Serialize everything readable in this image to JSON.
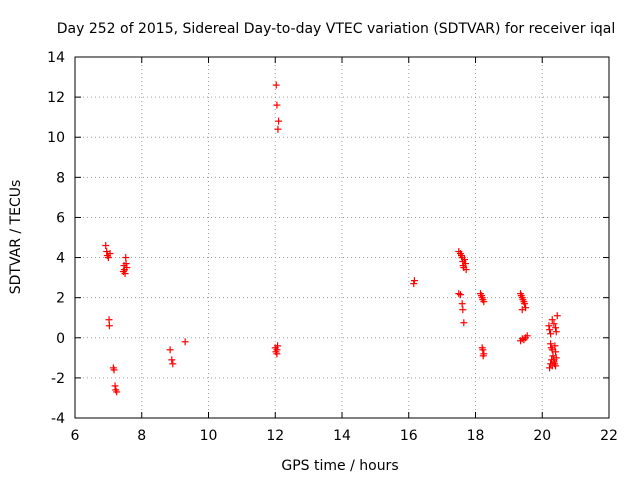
{
  "chart_data": {
    "type": "scatter",
    "title": "Day 252 of 2015, Sidereal Day-to-day VTEC variation (SDTVAR) for receiver iqal",
    "xlabel": "GPS time / hours",
    "ylabel": "SDTVAR / TECUs",
    "xlim": [
      6,
      22
    ],
    "ylim": [
      -4,
      14
    ],
    "xticks": [
      6,
      8,
      10,
      12,
      14,
      16,
      18,
      20,
      22
    ],
    "yticks": [
      -4,
      -2,
      0,
      2,
      4,
      6,
      8,
      10,
      12,
      14
    ],
    "xtick_labels": [
      "6",
      "8",
      "10",
      "12",
      "14",
      "16",
      "18",
      "20",
      "22"
    ],
    "ytick_labels": [
      "-4",
      "-2",
      "0",
      "2",
      "4",
      "6",
      "8",
      "10",
      "12",
      "14"
    ],
    "grid": true,
    "marker": "+",
    "color": "#ff0000",
    "series": [
      {
        "name": "SDTVAR",
        "x": [
          6.92,
          6.95,
          6.97,
          7.0,
          7.02,
          7.03,
          7.05,
          7.15,
          7.17,
          7.2,
          7.22,
          7.25,
          7.45,
          7.47,
          7.48,
          7.5,
          7.52,
          7.53,
          7.55,
          8.85,
          8.9,
          8.93,
          9.3,
          12.0,
          12.02,
          12.05,
          12.05,
          12.07,
          12.03,
          12.05,
          12.1,
          12.08,
          16.15,
          16.17,
          17.5,
          17.55,
          17.58,
          17.6,
          17.62,
          17.63,
          17.65,
          17.67,
          17.7,
          17.72,
          17.5,
          17.55,
          17.6,
          17.62,
          17.65,
          18.15,
          18.18,
          18.2,
          18.22,
          18.25,
          18.2,
          18.22,
          18.25,
          18.23,
          19.35,
          19.37,
          19.4,
          19.42,
          19.45,
          19.47,
          19.5,
          19.4,
          19.45,
          19.5,
          19.55,
          19.35,
          19.4,
          20.2,
          20.22,
          20.25,
          20.25,
          20.27,
          20.3,
          20.32,
          20.35,
          20.37,
          20.4,
          20.42,
          20.4,
          20.38,
          20.35,
          20.3,
          20.28,
          20.25,
          20.22,
          20.3,
          20.35,
          20.4,
          20.45,
          20.42
        ],
        "y": [
          4.6,
          4.3,
          4.1,
          4.0,
          0.9,
          0.6,
          4.2,
          -1.5,
          -1.6,
          -2.4,
          -2.6,
          -2.7,
          3.3,
          3.6,
          3.4,
          3.2,
          4.0,
          3.7,
          3.5,
          -0.6,
          -1.1,
          -1.3,
          -0.2,
          -0.5,
          -0.7,
          -0.8,
          -0.6,
          -0.4,
          12.6,
          11.6,
          10.8,
          10.4,
          2.7,
          2.85,
          4.3,
          4.2,
          4.1,
          4.0,
          3.8,
          3.6,
          3.5,
          3.9,
          3.7,
          3.4,
          2.2,
          2.15,
          1.7,
          1.4,
          0.75,
          2.2,
          2.1,
          2.0,
          1.9,
          1.8,
          -0.5,
          -0.6,
          -0.8,
          -0.9,
          2.2,
          2.1,
          2.0,
          1.9,
          1.8,
          1.7,
          1.5,
          1.4,
          -0.1,
          0.0,
          0.1,
          -0.15,
          -0.05,
          0.6,
          0.4,
          0.2,
          -0.3,
          -0.5,
          -0.6,
          -0.9,
          -1.1,
          -1.3,
          -1.4,
          -1.0,
          -0.7,
          -0.4,
          -1.2,
          -1.4,
          -1.1,
          -1.3,
          -1.5,
          0.9,
          0.7,
          0.5,
          1.1,
          0.3
        ]
      }
    ]
  }
}
